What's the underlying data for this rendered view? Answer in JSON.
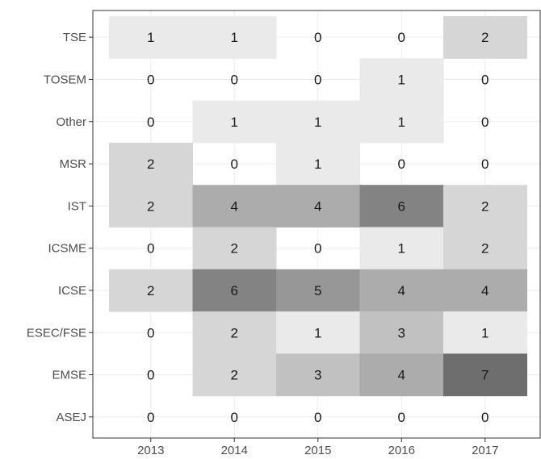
{
  "chart_data": {
    "type": "heatmap",
    "title": "",
    "xlabel": "",
    "ylabel": "",
    "x": [
      "2013",
      "2014",
      "2015",
      "2016",
      "2017"
    ],
    "y": [
      "TSE",
      "TOSEM",
      "Other",
      "MSR",
      "IST",
      "ICSME",
      "ICSE",
      "ESEC/FSE",
      "EMSE",
      "ASEJ"
    ],
    "values": [
      [
        1,
        1,
        0,
        0,
        2
      ],
      [
        0,
        0,
        0,
        1,
        0
      ],
      [
        0,
        1,
        1,
        1,
        0
      ],
      [
        2,
        0,
        1,
        0,
        0
      ],
      [
        2,
        4,
        4,
        6,
        2
      ],
      [
        0,
        2,
        0,
        1,
        2
      ],
      [
        2,
        6,
        5,
        4,
        4
      ],
      [
        0,
        2,
        1,
        3,
        1
      ],
      [
        0,
        2,
        3,
        4,
        7
      ],
      [
        0,
        0,
        0,
        0,
        0
      ]
    ],
    "value_range": [
      0,
      7
    ],
    "color_low": "#ffffff",
    "color_high": "#6e6e6e",
    "grid": true,
    "legend": "none"
  }
}
